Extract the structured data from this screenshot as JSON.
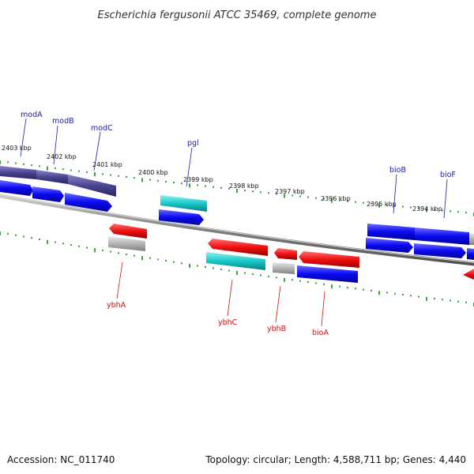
{
  "title": "Escherichia fergusonii ATCC 35469, complete genome",
  "footer": {
    "accession": "Accession: NC_011740",
    "summary": "Topology: circular; Length: 4,588,711 bp; Genes: 4,440"
  },
  "ticks": [
    "2403 kbp",
    "2402 kbp",
    "2401 kbp",
    "2400 kbp",
    "2399 kbp",
    "2398 kbp",
    "2397 kbp",
    "2396 kbp",
    "2395 kbp",
    "2394 kbp"
  ],
  "genes_top": [
    {
      "name": "modA",
      "color": "#1a1aa8"
    },
    {
      "name": "modB",
      "color": "#1a1aa8"
    },
    {
      "name": "modC",
      "color": "#1a1aa8"
    },
    {
      "name": "pgl",
      "color": "#1a1aa8"
    },
    {
      "name": "bioB",
      "color": "#1a1aa8"
    },
    {
      "name": "bioF",
      "color": "#1a1aa8"
    }
  ],
  "genes_bottom": [
    {
      "name": "ybhA",
      "color": "#cc1111"
    },
    {
      "name": "ybhC",
      "color": "#cc1111"
    },
    {
      "name": "ybhB",
      "color": "#cc1111"
    },
    {
      "name": "bioA",
      "color": "#cc1111"
    }
  ],
  "colors": {
    "forward_gene": "#1010e8",
    "reverse_gene": "#e81010",
    "operon_dark": "#4a4590",
    "teal": "#17c9c9",
    "grey": "#b0b0b0",
    "tick_green": "#118811",
    "backbone": "#888888"
  }
}
